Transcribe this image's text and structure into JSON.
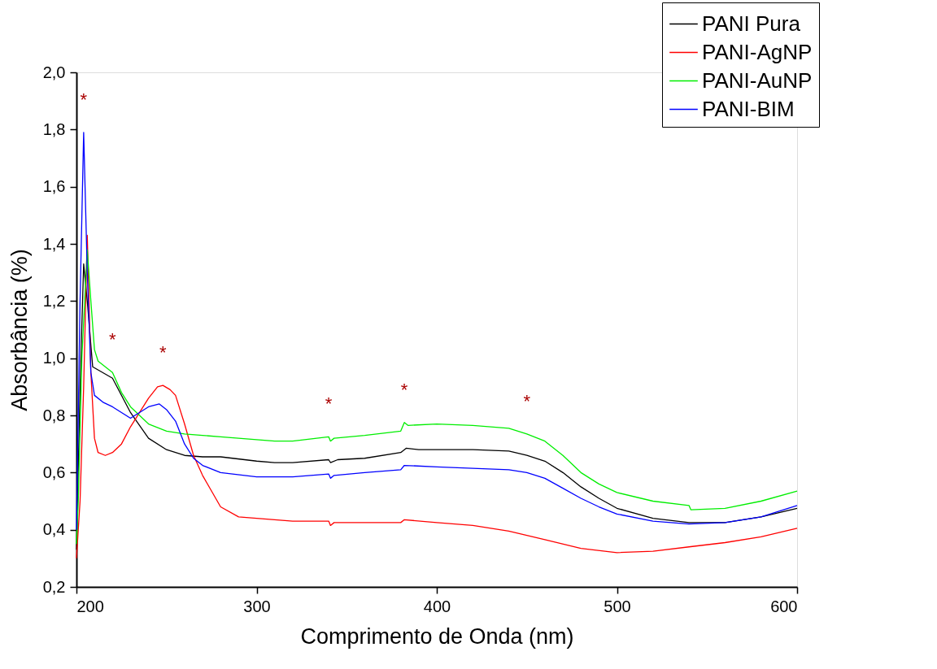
{
  "chart_data": {
    "type": "line",
    "xlabel": "Comprimento de Onda (nm)",
    "ylabel": "Absorbância (%)",
    "xlim": [
      200,
      600
    ],
    "xticks": [
      200,
      300,
      400,
      500,
      600
    ],
    "ylim": [
      0.2,
      2.0
    ],
    "yticks": [
      {
        "value": 0.2,
        "label": "0,2"
      },
      {
        "value": 0.4,
        "label": "0,4"
      },
      {
        "value": 0.6,
        "label": "0,6"
      },
      {
        "value": 0.8,
        "label": "0,8"
      },
      {
        "value": 1.0,
        "label": "1,0"
      },
      {
        "value": 1.2,
        "label": "1,2"
      },
      {
        "value": 1.4,
        "label": "1,4"
      },
      {
        "value": 1.6,
        "label": "1,6"
      },
      {
        "value": 1.8,
        "label": "1,8"
      },
      {
        "value": 2.0,
        "label": "2,0"
      }
    ],
    "grid": false,
    "legend": "top right",
    "marker": "none",
    "line_style": "solid",
    "series": [
      {
        "name": "PANI Pura",
        "color": "#000000",
        "x": [
          200,
          202,
          204,
          206,
          209,
          220,
          230,
          240,
          250,
          260,
          270,
          280,
          300,
          310,
          320,
          340,
          341,
          345,
          360,
          380,
          383,
          390,
          400,
          420,
          440,
          450,
          460,
          470,
          480,
          490,
          500,
          520,
          540,
          560,
          580,
          600
        ],
        "values": [
          0.33,
          0.9,
          1.33,
          1.2,
          0.97,
          0.93,
          0.81,
          0.72,
          0.68,
          0.66,
          0.655,
          0.655,
          0.64,
          0.635,
          0.635,
          0.645,
          0.635,
          0.645,
          0.65,
          0.67,
          0.685,
          0.68,
          0.68,
          0.68,
          0.675,
          0.66,
          0.64,
          0.6,
          0.55,
          0.51,
          0.475,
          0.44,
          0.425,
          0.425,
          0.445,
          0.475
        ]
      },
      {
        "name": "PANI-AgNP",
        "color": "#ff0000",
        "x": [
          200,
          202,
          204,
          206,
          208,
          210,
          212,
          216,
          220,
          225,
          230,
          240,
          245,
          248,
          252,
          255,
          260,
          265,
          270,
          280,
          290,
          300,
          320,
          340,
          341,
          343,
          360,
          380,
          382,
          400,
          420,
          440,
          460,
          480,
          500,
          520,
          540,
          560,
          580,
          600
        ],
        "values": [
          0.3,
          0.5,
          0.9,
          1.43,
          0.95,
          0.72,
          0.67,
          0.66,
          0.67,
          0.7,
          0.76,
          0.86,
          0.9,
          0.905,
          0.89,
          0.87,
          0.77,
          0.66,
          0.59,
          0.48,
          0.445,
          0.44,
          0.43,
          0.43,
          0.415,
          0.425,
          0.425,
          0.425,
          0.435,
          0.425,
          0.415,
          0.395,
          0.365,
          0.335,
          0.32,
          0.325,
          0.34,
          0.355,
          0.375,
          0.405
        ]
      },
      {
        "name": "PANI-AuNP",
        "color": "#00ee00",
        "x": [
          200,
          201,
          203,
          206,
          208,
          210,
          212,
          220,
          225,
          230,
          240,
          250,
          260,
          270,
          280,
          300,
          310,
          320,
          340,
          341,
          343,
          360,
          380,
          382,
          384,
          400,
          420,
          440,
          450,
          460,
          470,
          480,
          490,
          500,
          520,
          540,
          541,
          560,
          580,
          600
        ],
        "values": [
          0.35,
          0.5,
          1.0,
          1.38,
          1.2,
          1.03,
          0.99,
          0.95,
          0.88,
          0.83,
          0.77,
          0.745,
          0.735,
          0.73,
          0.725,
          0.715,
          0.71,
          0.71,
          0.725,
          0.71,
          0.72,
          0.73,
          0.745,
          0.775,
          0.765,
          0.77,
          0.765,
          0.755,
          0.735,
          0.71,
          0.66,
          0.6,
          0.56,
          0.53,
          0.5,
          0.485,
          0.47,
          0.475,
          0.5,
          0.535
        ]
      },
      {
        "name": "PANI-BIM",
        "color": "#0000ff",
        "x": [
          200,
          202,
          204,
          206,
          208,
          210,
          215,
          220,
          225,
          230,
          235,
          240,
          246,
          250,
          255,
          260,
          265,
          270,
          280,
          300,
          320,
          340,
          341,
          343,
          360,
          380,
          382,
          400,
          420,
          440,
          450,
          460,
          470,
          480,
          490,
          500,
          520,
          540,
          560,
          580,
          600
        ],
        "values": [
          0.4,
          1.2,
          1.79,
          1.3,
          0.95,
          0.87,
          0.845,
          0.83,
          0.81,
          0.79,
          0.81,
          0.83,
          0.84,
          0.82,
          0.78,
          0.7,
          0.65,
          0.625,
          0.6,
          0.585,
          0.585,
          0.595,
          0.58,
          0.59,
          0.6,
          0.61,
          0.625,
          0.62,
          0.615,
          0.61,
          0.6,
          0.58,
          0.545,
          0.51,
          0.48,
          0.455,
          0.43,
          0.42,
          0.425,
          0.445,
          0.485
        ]
      }
    ],
    "annotations": [
      {
        "text": "*",
        "x": 204,
        "y": 1.79
      },
      {
        "text": "*",
        "x": 220,
        "y": 0.95
      },
      {
        "text": "*",
        "x": 248,
        "y": 0.905
      },
      {
        "text": "*",
        "x": 340,
        "y": 0.725
      },
      {
        "text": "*",
        "x": 382,
        "y": 0.775
      },
      {
        "text": "*",
        "x": 450,
        "y": 0.735
      }
    ]
  }
}
